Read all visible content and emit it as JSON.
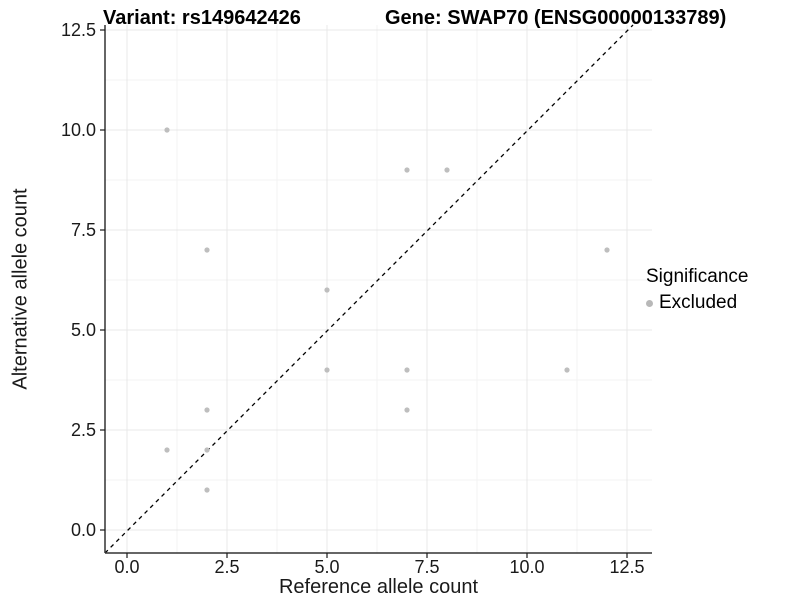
{
  "header": {
    "variant_title": "Variant: rs149642426",
    "gene_title": "Gene: SWAP70 (ENSG00000133789)"
  },
  "axes": {
    "x_label": "Reference allele count",
    "y_label": "Alternative allele count",
    "x_tick_labels": [
      "0.0",
      "2.5",
      "5.0",
      "7.5",
      "10.0",
      "12.5"
    ],
    "x_tick_values": [
      0,
      2.5,
      5,
      7.5,
      10,
      12.5
    ],
    "y_tick_labels": [
      "0.0",
      "2.5",
      "5.0",
      "7.5",
      "10.0",
      "12.5"
    ],
    "y_tick_values": [
      0,
      2.5,
      5,
      7.5,
      10,
      12.5
    ],
    "minor_tick_values": [
      1.25,
      3.75,
      6.25,
      8.75,
      11.25
    ]
  },
  "legend": {
    "title": "Significance",
    "items": [
      {
        "label": "Excluded",
        "color": "#b8b8b8"
      }
    ]
  },
  "colors": {
    "point": "#bebebe",
    "grid_major": "#e8e8e8",
    "grid_minor": "#f3f3f3",
    "axis_line": "#333333",
    "identity_line": "#000000"
  },
  "chart_data": {
    "type": "scatter",
    "title": "Variant: rs149642426 — Gene: SWAP70 (ENSG00000133789)",
    "xlabel": "Reference allele count",
    "ylabel": "Alternative allele count",
    "xlim": [
      -0.6,
      13.1
    ],
    "ylim": [
      -0.6,
      13.1
    ],
    "x_ticks": [
      0,
      2.5,
      5,
      7.5,
      10,
      12.5
    ],
    "y_ticks": [
      0,
      2.5,
      5,
      7.5,
      10,
      12.5
    ],
    "grid": "major+minor",
    "legend_position": "right",
    "identity_line": {
      "slope": 1,
      "intercept": 0,
      "style": "dashed",
      "color": "#000000"
    },
    "series": [
      {
        "name": "Excluded",
        "color": "#bebebe",
        "points": [
          [
            1,
            10
          ],
          [
            1,
            2
          ],
          [
            2,
            7
          ],
          [
            2,
            3
          ],
          [
            2,
            2
          ],
          [
            2,
            1
          ],
          [
            5,
            6
          ],
          [
            5,
            4
          ],
          [
            7,
            9
          ],
          [
            7,
            4
          ],
          [
            7,
            3
          ],
          [
            8,
            9
          ],
          [
            11,
            4
          ],
          [
            12,
            7
          ]
        ]
      }
    ]
  }
}
